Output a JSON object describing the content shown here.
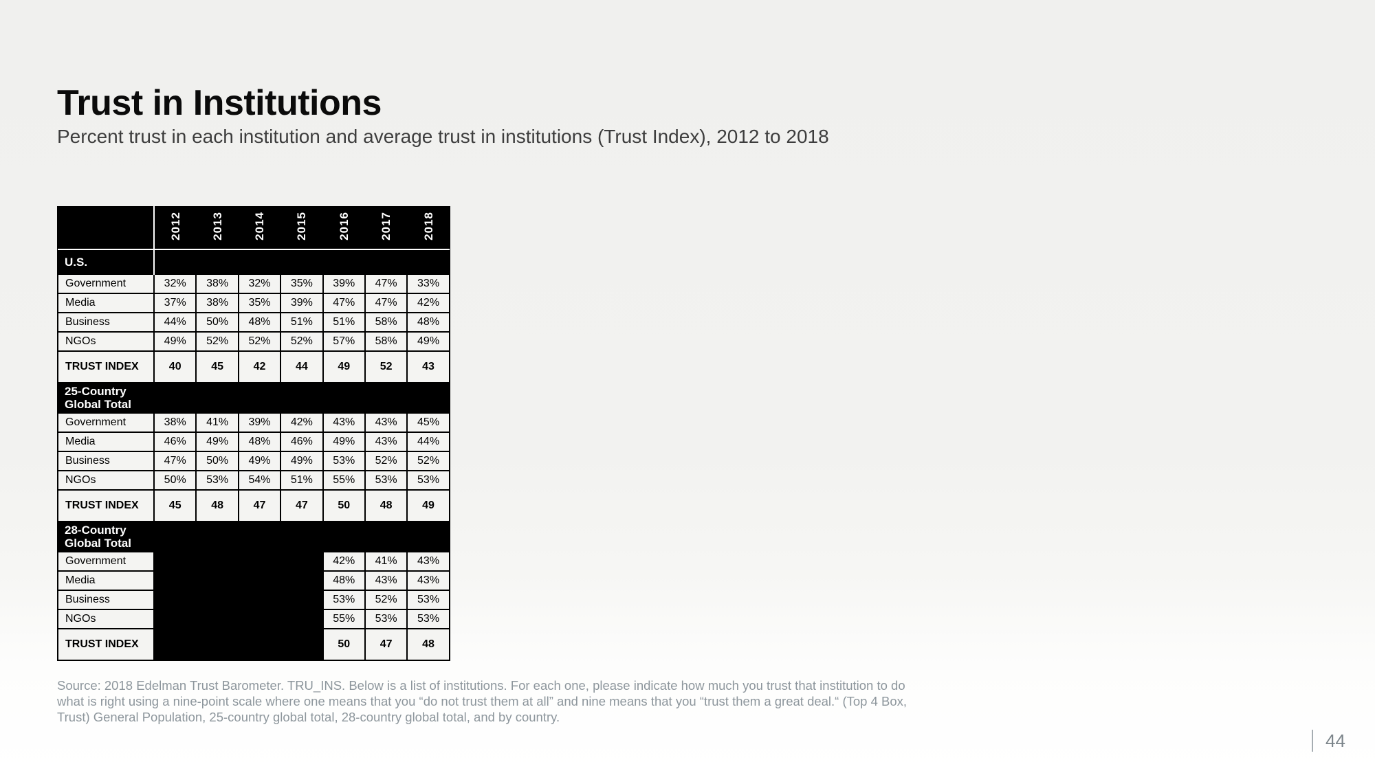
{
  "slide": {
    "title": "Trust in Institutions",
    "subtitle": "Percent trust in each institution and average trust in institutions (Trust Index), 2012 to 2018",
    "source_text": "Source: 2018 Edelman Trust Barometer. TRU_INS. Below is a list of institutions. For each one, please indicate how much you trust that institution to do what is right using a nine-point scale where one means that you “do not trust them at all” and nine means that you “trust them a great deal.“ (Top 4 Box, Trust) General Population, 25-country global total, 28-country global total, and by country.",
    "page_number": "44"
  },
  "colors": {
    "table_header_bg": "#000000",
    "table_header_text": "#ffffff",
    "cell_bg": "#f4f4f2",
    "cell_border": "#000000",
    "header_divider": "#ffffff",
    "page_bg": "#f1f1ef",
    "title_text": "#0b0b0b",
    "subtitle_text": "#3d3d3d",
    "source_text": "#8d969c",
    "page_number_text": "#7b848a"
  },
  "chart_data": {
    "type": "table",
    "title": "Trust in Institutions",
    "subtitle": "Percent trust in each institution and average trust in institutions (Trust Index), 2012 to 2018",
    "columns": [
      "2012",
      "2013",
      "2014",
      "2015",
      "2016",
      "2017",
      "2018"
    ],
    "sections": [
      {
        "label": "U.S.",
        "rows": [
          {
            "label": "Government",
            "emphasis": false,
            "values": [
              "32%",
              "38%",
              "32%",
              "35%",
              "39%",
              "47%",
              "33%"
            ]
          },
          {
            "label": "Media",
            "emphasis": false,
            "values": [
              "37%",
              "38%",
              "35%",
              "39%",
              "47%",
              "47%",
              "42%"
            ]
          },
          {
            "label": "Business",
            "emphasis": false,
            "values": [
              "44%",
              "50%",
              "48%",
              "51%",
              "51%",
              "58%",
              "48%"
            ]
          },
          {
            "label": "NGOs",
            "emphasis": false,
            "values": [
              "49%",
              "52%",
              "52%",
              "52%",
              "57%",
              "58%",
              "49%"
            ]
          },
          {
            "label": "TRUST INDEX",
            "emphasis": true,
            "values": [
              "40",
              "45",
              "42",
              "44",
              "49",
              "52",
              "43"
            ]
          }
        ]
      },
      {
        "label": "25-Country Global Total",
        "rows": [
          {
            "label": "Government",
            "emphasis": false,
            "values": [
              "38%",
              "41%",
              "39%",
              "42%",
              "43%",
              "43%",
              "45%"
            ]
          },
          {
            "label": "Media",
            "emphasis": false,
            "values": [
              "46%",
              "49%",
              "48%",
              "46%",
              "49%",
              "43%",
              "44%"
            ]
          },
          {
            "label": "Business",
            "emphasis": false,
            "values": [
              "47%",
              "50%",
              "49%",
              "49%",
              "53%",
              "52%",
              "52%"
            ]
          },
          {
            "label": "NGOs",
            "emphasis": false,
            "values": [
              "50%",
              "53%",
              "54%",
              "51%",
              "55%",
              "53%",
              "53%"
            ]
          },
          {
            "label": "TRUST INDEX",
            "emphasis": true,
            "values": [
              "45",
              "48",
              "47",
              "47",
              "50",
              "48",
              "49"
            ]
          }
        ]
      },
      {
        "label": "28-Country Global Total",
        "rows": [
          {
            "label": "Government",
            "emphasis": false,
            "values": [
              null,
              null,
              null,
              null,
              "42%",
              "41%",
              "43%"
            ]
          },
          {
            "label": "Media",
            "emphasis": false,
            "values": [
              null,
              null,
              null,
              null,
              "48%",
              "43%",
              "43%"
            ]
          },
          {
            "label": "Business",
            "emphasis": false,
            "values": [
              null,
              null,
              null,
              null,
              "53%",
              "52%",
              "53%"
            ]
          },
          {
            "label": "NGOs",
            "emphasis": false,
            "values": [
              null,
              null,
              null,
              null,
              "55%",
              "53%",
              "53%"
            ]
          },
          {
            "label": "TRUST INDEX",
            "emphasis": true,
            "values": [
              null,
              null,
              null,
              null,
              "50",
              "47",
              "48"
            ]
          }
        ]
      }
    ]
  }
}
